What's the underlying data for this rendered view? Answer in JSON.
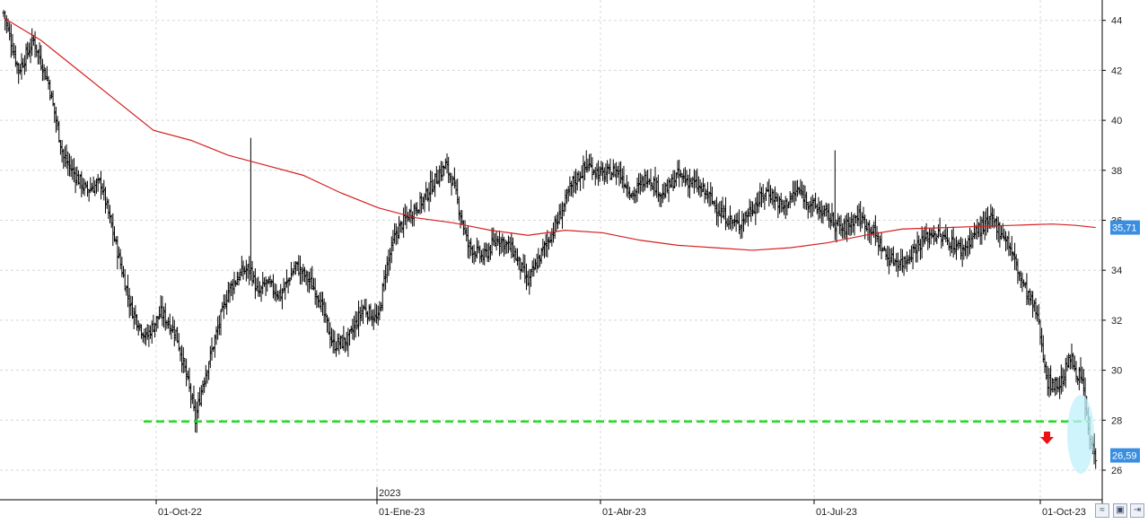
{
  "chart_data": {
    "type": "ohlc",
    "y_axis": {
      "ticks": [
        "26",
        "28",
        "30",
        "32",
        "34",
        "36",
        "38",
        "40",
        "42",
        "44"
      ],
      "min": 25,
      "max": 44.8,
      "side": "right"
    },
    "x_axis": {
      "ticks": [
        "01-Oct-22",
        "01-Ene-23",
        "01-Abr-23",
        "01-Jul-23",
        "01-Oct-23"
      ],
      "year_marker": "2023"
    },
    "grid": true,
    "price_label": "26,59",
    "ma_label": "35,71",
    "support_level": 27.95,
    "colors": {
      "bars": "#000000",
      "moving_average": "#d62020",
      "support": "#22dd22",
      "label_bg": "#3a8ee0",
      "highlight": "#bff0fb",
      "arrow": "#ee1111"
    },
    "anchors": [
      [
        0,
        44.3
      ],
      [
        10,
        42
      ],
      [
        20,
        43.2
      ],
      [
        30,
        41.5
      ],
      [
        40,
        38.5
      ],
      [
        55,
        37.2
      ],
      [
        65,
        37.5
      ],
      [
        75,
        35
      ],
      [
        85,
        32.5
      ],
      [
        95,
        31.3
      ],
      [
        105,
        32.3
      ],
      [
        115,
        31.5
      ],
      [
        125,
        29
      ],
      [
        128,
        28
      ],
      [
        133,
        29.5
      ],
      [
        140,
        31
      ],
      [
        150,
        33.2
      ],
      [
        160,
        34
      ],
      [
        165,
        34
      ],
      [
        170,
        33
      ],
      [
        175,
        33.5
      ],
      [
        185,
        33
      ],
      [
        195,
        34.2
      ],
      [
        205,
        33.5
      ],
      [
        210,
        33
      ],
      [
        220,
        31
      ],
      [
        230,
        31.2
      ],
      [
        240,
        32.5
      ],
      [
        250,
        32
      ],
      [
        255,
        34
      ],
      [
        262,
        35.5
      ],
      [
        270,
        36.2
      ],
      [
        280,
        36.8
      ],
      [
        290,
        37.8
      ],
      [
        295,
        38.2
      ],
      [
        300,
        37.5
      ],
      [
        310,
        35
      ],
      [
        320,
        34.5
      ],
      [
        330,
        35.3
      ],
      [
        340,
        34.8
      ],
      [
        350,
        33.5
      ],
      [
        360,
        34.8
      ],
      [
        370,
        36
      ],
      [
        380,
        37.5
      ],
      [
        390,
        38.2
      ],
      [
        400,
        37.8
      ],
      [
        410,
        38
      ],
      [
        420,
        37
      ],
      [
        430,
        37.8
      ],
      [
        440,
        37
      ],
      [
        450,
        37.8
      ],
      [
        460,
        37.5
      ],
      [
        470,
        37
      ],
      [
        480,
        36.2
      ],
      [
        490,
        35.8
      ],
      [
        500,
        36.5
      ],
      [
        510,
        37.2
      ],
      [
        520,
        36.5
      ],
      [
        530,
        37.2
      ],
      [
        540,
        36.6
      ],
      [
        550,
        36.2
      ],
      [
        560,
        35.6
      ],
      [
        570,
        36.2
      ],
      [
        580,
        35.6
      ],
      [
        590,
        34.5
      ],
      [
        600,
        34.3
      ],
      [
        610,
        35
      ],
      [
        620,
        35.5
      ],
      [
        630,
        35.2
      ],
      [
        640,
        34.8
      ],
      [
        650,
        35.6
      ],
      [
        660,
        36
      ],
      [
        670,
        35.2
      ],
      [
        680,
        33.5
      ],
      [
        690,
        32.2
      ],
      [
        697,
        29.5
      ],
      [
        705,
        29.4
      ],
      [
        712,
        30.5
      ],
      [
        720,
        29.5
      ],
      [
        725,
        27.2
      ],
      [
        729,
        26.59
      ]
    ],
    "spikes": [
      [
        165,
        39.3
      ],
      [
        389,
        38.8
      ],
      [
        555,
        38.8
      ]
    ],
    "moving_average": [
      [
        0,
        44.1
      ],
      [
        25,
        43.2
      ],
      [
        50,
        42
      ],
      [
        75,
        40.8
      ],
      [
        100,
        39.6
      ],
      [
        125,
        39.2
      ],
      [
        150,
        38.6
      ],
      [
        175,
        38.2
      ],
      [
        200,
        37.8
      ],
      [
        225,
        37.1
      ],
      [
        250,
        36.5
      ],
      [
        275,
        36.1
      ],
      [
        300,
        35.9
      ],
      [
        325,
        35.6
      ],
      [
        350,
        35.4
      ],
      [
        375,
        35.6
      ],
      [
        400,
        35.5
      ],
      [
        425,
        35.2
      ],
      [
        450,
        35
      ],
      [
        475,
        34.9
      ],
      [
        500,
        34.8
      ],
      [
        525,
        34.9
      ],
      [
        550,
        35.1
      ],
      [
        575,
        35.4
      ],
      [
        600,
        35.65
      ],
      [
        625,
        35.7
      ],
      [
        650,
        35.75
      ],
      [
        675,
        35.8
      ],
      [
        700,
        35.85
      ],
      [
        715,
        35.8
      ],
      [
        729,
        35.71
      ]
    ]
  }
}
